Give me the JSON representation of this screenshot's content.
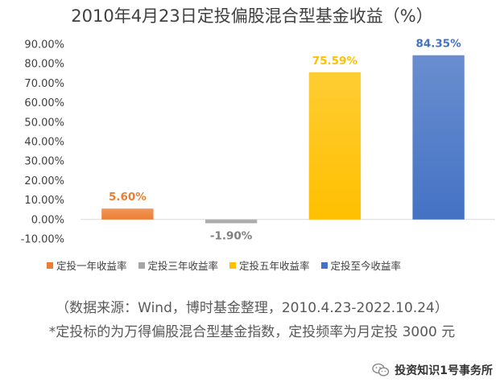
{
  "chart_data": {
    "type": "bar",
    "title": "2010年4月23日定投偏股混合型基金收益（%）",
    "categories": [
      "定投一年收益率",
      "定投三年收益率",
      "定投五年收益率",
      "定投至今收益率"
    ],
    "values": [
      5.6,
      -1.9,
      75.59,
      84.35
    ],
    "data_labels": [
      "5.60%",
      "-1.90%",
      "75.59%",
      "84.35%"
    ],
    "colors": [
      "#ED7D31",
      "#A5A5A5",
      "#FFC000",
      "#4472C4"
    ],
    "label_colors": [
      "#ED7D31",
      "#7F7F7F",
      "#FFC000",
      "#4472C4"
    ],
    "ylim": [
      -10,
      90
    ],
    "y_ticks": [
      "-10.00%",
      "0.00%",
      "10.00%",
      "20.00%",
      "30.00%",
      "40.00%",
      "50.00%",
      "60.00%",
      "70.00%",
      "80.00%",
      "90.00%"
    ],
    "y_tick_values": [
      -10,
      0,
      10,
      20,
      30,
      40,
      50,
      60,
      70,
      80,
      90
    ],
    "grid": false,
    "legend_position": "bottom"
  },
  "notes": {
    "source": "（数据来源：Wind，博时基金整理，2010.4.23-2022.10.24）",
    "index": "*定投标的为万得偏股混合型基金指数，定投频率为月定投 3000 元"
  },
  "watermark": {
    "text": "投资知识1号事务所",
    "icon": "wechat-icon"
  }
}
